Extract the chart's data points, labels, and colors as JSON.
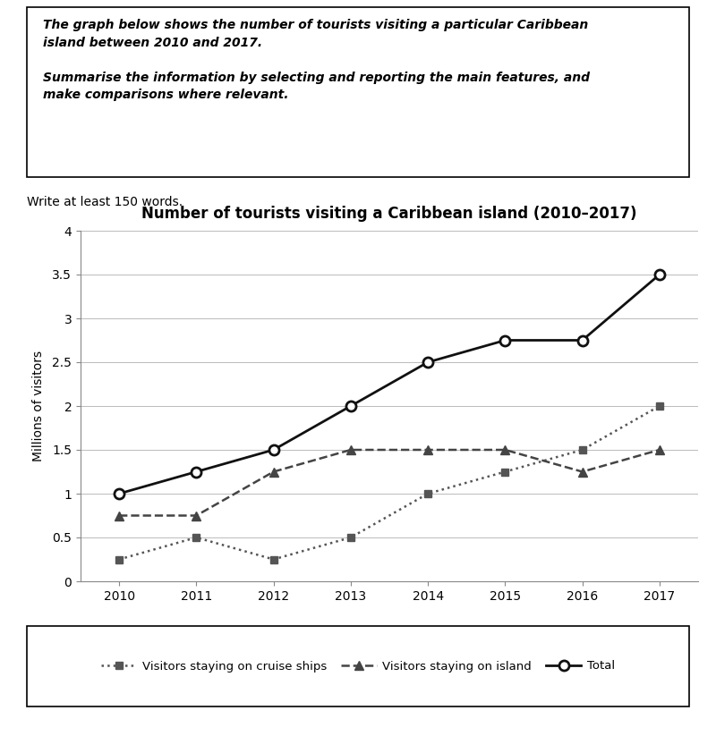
{
  "years": [
    2010,
    2011,
    2012,
    2013,
    2014,
    2015,
    2016,
    2017
  ],
  "cruise_ships": [
    0.25,
    0.5,
    0.25,
    0.5,
    1.0,
    1.25,
    1.5,
    2.0
  ],
  "island": [
    0.75,
    0.75,
    1.25,
    1.5,
    1.5,
    1.5,
    1.25,
    1.5
  ],
  "total": [
    1.0,
    1.25,
    1.5,
    2.0,
    2.5,
    2.75,
    2.75,
    3.5
  ],
  "title": "Number of tourists visiting a Caribbean island (2010–2017)",
  "ylabel": "Millions of visitors",
  "ylim": [
    0,
    4
  ],
  "yticks": [
    0,
    0.5,
    1.0,
    1.5,
    2.0,
    2.5,
    3.0,
    3.5,
    4.0
  ],
  "ytick_labels": [
    "0",
    "0.5",
    "1",
    "1.5",
    "2",
    "2.5",
    "3",
    "3.5",
    "4"
  ],
  "xlim": [
    2009.5,
    2017.5
  ],
  "prompt_text": "The graph below shows the number of tourists visiting a particular Caribbean\nisland between 2010 and 2017.\n\nSummarise the information by selecting and reporting the main features, and\nmake comparisons where relevant.",
  "subtext": "Write at least 150 words.",
  "legend_cruise": "Visitors staying on cruise ships",
  "legend_island": "Visitors staying on island",
  "legend_total": "Total",
  "color_cruise": "#555555",
  "color_island": "#444444",
  "color_total": "#111111",
  "bg_color": "#ffffff"
}
